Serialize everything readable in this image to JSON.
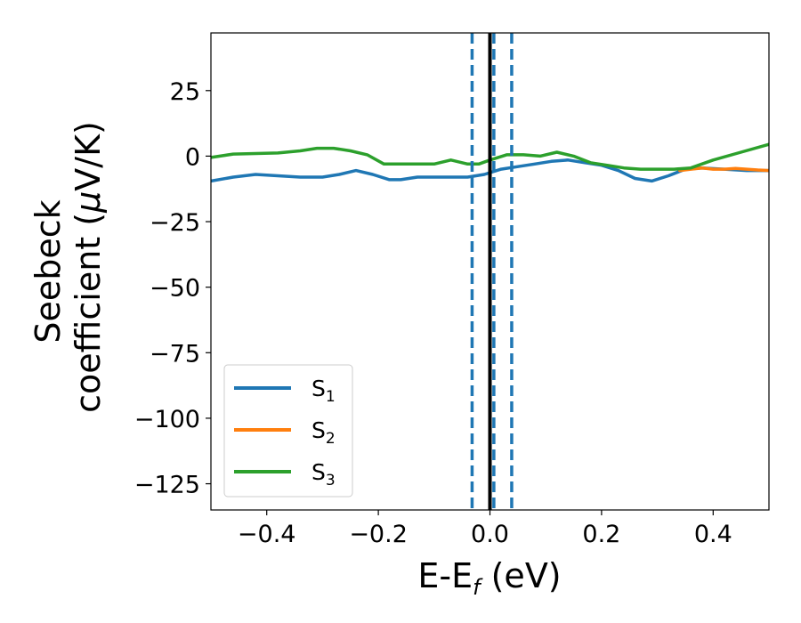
{
  "chart_data": {
    "type": "line",
    "title": "",
    "xlabel": "E-E",
    "xlabel_sub": "f",
    "xlabel_unit": " (eV)",
    "ylabel_line1": "Seebeck",
    "ylabel_line2_pre": "coefficient  (",
    "ylabel_mu": "μ",
    "ylabel_line2_post": "V/K)",
    "xlim": [
      -0.5,
      0.5
    ],
    "ylim": [
      -135,
      47
    ],
    "xticks": [
      -0.4,
      -0.2,
      0.0,
      0.2,
      0.4
    ],
    "xtick_labels": [
      "−0.4",
      "−0.2",
      "0.0",
      "0.2",
      "0.4"
    ],
    "yticks": [
      25,
      0,
      -25,
      -50,
      -75,
      -100,
      -125
    ],
    "ytick_labels": [
      "25",
      "0",
      "−25",
      "−50",
      "−75",
      "−100",
      "−125"
    ],
    "legend_position": "lower-left",
    "series": [
      {
        "name": "S",
        "sub": "1",
        "color": "#1f77b4",
        "x": [
          -0.5,
          -0.46,
          -0.42,
          -0.38,
          -0.34,
          -0.3,
          -0.27,
          -0.24,
          -0.21,
          -0.18,
          -0.16,
          -0.13,
          -0.1,
          -0.07,
          -0.04,
          -0.01,
          0.02,
          0.05,
          0.08,
          0.11,
          0.14,
          0.17,
          0.2,
          0.23,
          0.26,
          0.29,
          0.32,
          0.35,
          0.38,
          0.42,
          0.46,
          0.5
        ],
        "y": [
          -9.5,
          -8,
          -7,
          -7.5,
          -8,
          -8,
          -7,
          -5.5,
          -7,
          -9,
          -9,
          -8,
          -8,
          -8,
          -8,
          -7,
          -5,
          -4,
          -3,
          -2,
          -1.5,
          -2.5,
          -3.5,
          -5.5,
          -8.5,
          -9.5,
          -7.5,
          -5,
          -4.5,
          -5,
          -5.5,
          -5.5
        ]
      },
      {
        "name": "S",
        "sub": "2",
        "color": "#ff7f0e",
        "x": [
          0.34,
          0.36,
          0.38,
          0.4,
          0.42,
          0.44,
          0.46,
          0.48,
          0.5
        ],
        "y": [
          -5.5,
          -5,
          -4.5,
          -5,
          -5,
          -4.7,
          -5,
          -5.3,
          -5.5
        ]
      },
      {
        "name": "S",
        "sub": "3",
        "color": "#2ca02c",
        "x": [
          -0.5,
          -0.46,
          -0.42,
          -0.38,
          -0.34,
          -0.31,
          -0.28,
          -0.25,
          -0.22,
          -0.19,
          -0.16,
          -0.13,
          -0.1,
          -0.07,
          -0.04,
          -0.02,
          0.0,
          0.03,
          0.06,
          0.09,
          0.12,
          0.15,
          0.18,
          0.21,
          0.24,
          0.27,
          0.3,
          0.33,
          0.36,
          0.4,
          0.45,
          0.5
        ],
        "y": [
          -0.5,
          0.8,
          1,
          1.2,
          2,
          3,
          3,
          2,
          0.5,
          -3,
          -3,
          -3,
          -3,
          -1.5,
          -3,
          -3,
          -1.5,
          0.5,
          0.5,
          0,
          1.5,
          0,
          -2.5,
          -3.5,
          -4.5,
          -5,
          -5,
          -5,
          -4.5,
          -1.5,
          1.5,
          4.5
        ]
      }
    ],
    "vlines": [
      {
        "x": -0.032,
        "style": "dashed",
        "color": "#1f77b4"
      },
      {
        "x": 0.007,
        "style": "dashed",
        "color": "#1f77b4"
      },
      {
        "x": 0.039,
        "style": "dashed",
        "color": "#1f77b4"
      },
      {
        "x": 0.0,
        "style": "solid",
        "color": "#000000"
      }
    ]
  }
}
